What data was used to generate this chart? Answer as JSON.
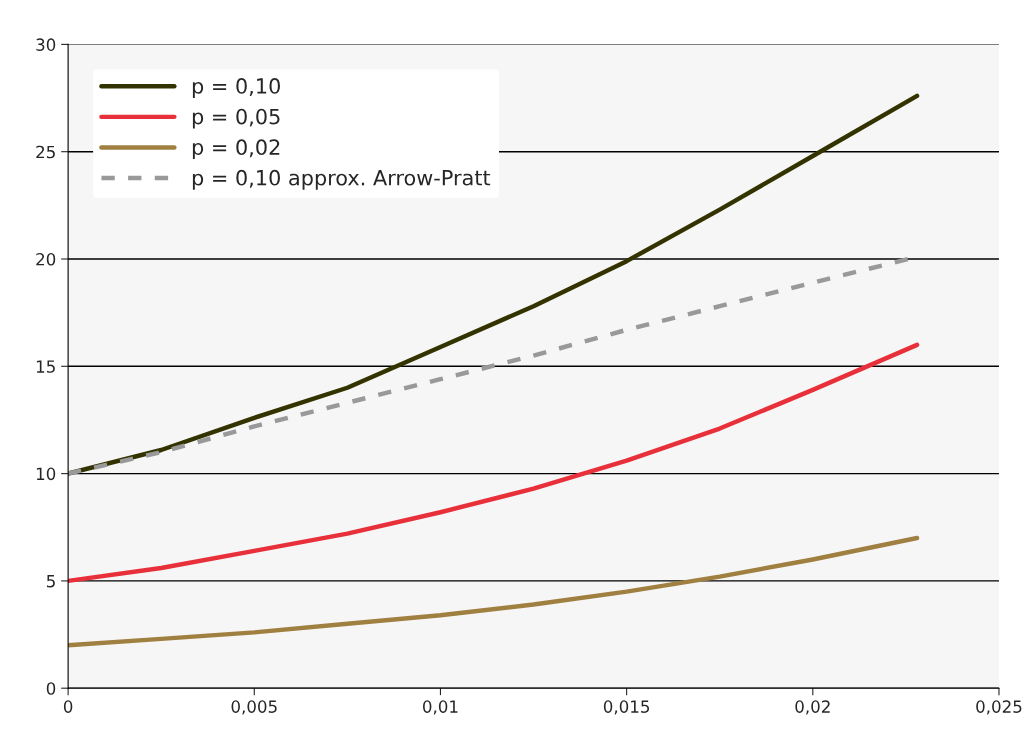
{
  "chart_data": {
    "type": "line",
    "x": [
      0,
      0.0025,
      0.005,
      0.0075,
      0.01,
      0.0125,
      0.015,
      0.0175,
      0.02,
      0.0228
    ],
    "series": [
      {
        "name": "p = 0,10",
        "color": "#333300",
        "values": [
          10,
          11.1,
          12.6,
          14.0,
          15.9,
          17.8,
          19.9,
          22.3,
          24.8,
          27.6
        ]
      },
      {
        "name": "p = 0,05",
        "color": "#e8303a",
        "values": [
          5,
          5.6,
          6.4,
          7.2,
          8.2,
          9.3,
          10.6,
          12.1,
          13.9,
          16.0
        ]
      },
      {
        "name": "p = 0,02",
        "color": "#a08040",
        "values": [
          2,
          2.3,
          2.6,
          3.0,
          3.4,
          3.9,
          4.5,
          5.2,
          6.0,
          7.0
        ]
      },
      {
        "name": "p = 0,10 approx. Arrow-Pratt",
        "color": "#999999",
        "line_style": "dashed",
        "values": [
          10,
          11.0,
          12.2,
          13.3,
          14.4,
          15.5,
          16.7,
          17.8,
          18.9,
          20.1
        ]
      }
    ],
    "xlim": [
      0,
      0.025
    ],
    "xticks": [
      0,
      {
        "value": 0.005,
        "label": "0,005"
      },
      {
        "value": 0.01,
        "label": "0,01"
      },
      {
        "value": 0.015,
        "label": "0,015"
      },
      {
        "value": 0.02,
        "label": "0,02"
      },
      {
        "value": 0.025,
        "label": "0,025"
      }
    ],
    "ylim": [
      0,
      30
    ],
    "yticks": [
      0,
      5,
      10,
      15,
      20,
      25,
      30
    ],
    "grid": "y",
    "legend": "top left"
  }
}
